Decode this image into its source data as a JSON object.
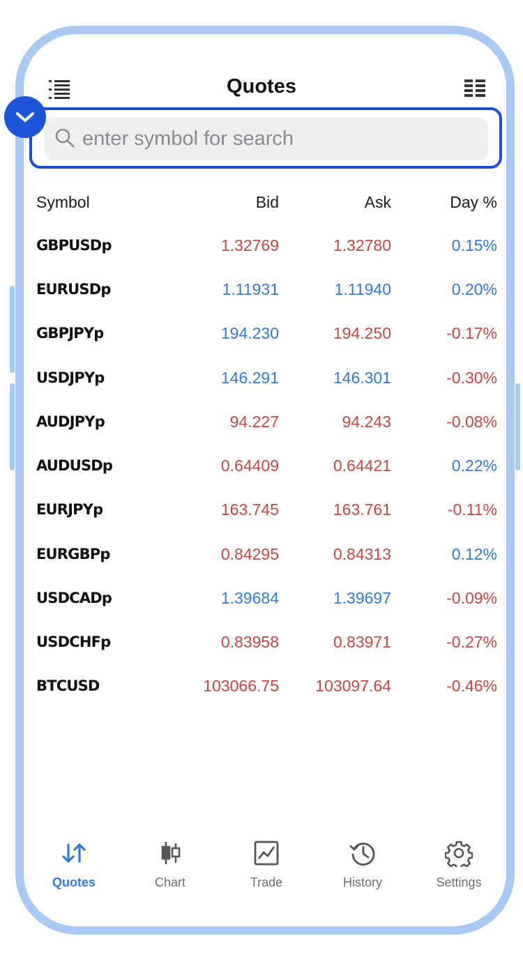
{
  "header": {
    "title": "Quotes",
    "left_icon": "list-icon",
    "right_icon": "grid-view-icon"
  },
  "search": {
    "placeholder": "enter symbol for search",
    "value": ""
  },
  "columns": {
    "symbol": "Symbol",
    "bid": "Bid",
    "ask": "Ask",
    "day": "Day %"
  },
  "colors": {
    "up": "#2f7ad8",
    "down": "#c9453f",
    "accent": "#1b56d8",
    "frame": "#a9c9f5"
  },
  "quotes": [
    {
      "symbol": "GBPUSDp",
      "bid": "1.32769",
      "ask": "1.32780",
      "day": "0.15%",
      "bid_dir": "down",
      "ask_dir": "down",
      "day_dir": "up"
    },
    {
      "symbol": "EURUSDp",
      "bid": "1.11931",
      "ask": "1.11940",
      "day": "0.20%",
      "bid_dir": "up",
      "ask_dir": "up",
      "day_dir": "up"
    },
    {
      "symbol": "GBPJPYp",
      "bid": "194.230",
      "ask": "194.250",
      "day": "-0.17%",
      "bid_dir": "up",
      "ask_dir": "down",
      "day_dir": "down"
    },
    {
      "symbol": "USDJPYp",
      "bid": "146.291",
      "ask": "146.301",
      "day": "-0.30%",
      "bid_dir": "up",
      "ask_dir": "up",
      "day_dir": "down"
    },
    {
      "symbol": "AUDJPYp",
      "bid": "94.227",
      "ask": "94.243",
      "day": "-0.08%",
      "bid_dir": "down",
      "ask_dir": "down",
      "day_dir": "down"
    },
    {
      "symbol": "AUDUSDp",
      "bid": "0.64409",
      "ask": "0.64421",
      "day": "0.22%",
      "bid_dir": "down",
      "ask_dir": "down",
      "day_dir": "up"
    },
    {
      "symbol": "EURJPYp",
      "bid": "163.745",
      "ask": "163.761",
      "day": "-0.11%",
      "bid_dir": "down",
      "ask_dir": "down",
      "day_dir": "down"
    },
    {
      "symbol": "EURGBPp",
      "bid": "0.84295",
      "ask": "0.84313",
      "day": "0.12%",
      "bid_dir": "down",
      "ask_dir": "down",
      "day_dir": "up"
    },
    {
      "symbol": "USDCADp",
      "bid": "1.39684",
      "ask": "1.39697",
      "day": "-0.09%",
      "bid_dir": "up",
      "ask_dir": "up",
      "day_dir": "down"
    },
    {
      "symbol": "USDCHFp",
      "bid": "0.83958",
      "ask": "0.83971",
      "day": "-0.27%",
      "bid_dir": "down",
      "ask_dir": "down",
      "day_dir": "down"
    },
    {
      "symbol": "BTCUSD",
      "bid": "103066.75",
      "ask": "103097.64",
      "day": "-0.46%",
      "bid_dir": "down",
      "ask_dir": "down",
      "day_dir": "down"
    }
  ],
  "tabs": [
    {
      "label": "Quotes",
      "icon": "sort-arrows-icon",
      "active": true
    },
    {
      "label": "Chart",
      "icon": "candlestick-icon",
      "active": false
    },
    {
      "label": "Trade",
      "icon": "trade-chart-icon",
      "active": false
    },
    {
      "label": "History",
      "icon": "history-icon",
      "active": false
    },
    {
      "label": "Settings",
      "icon": "gear-icon",
      "active": false
    }
  ]
}
